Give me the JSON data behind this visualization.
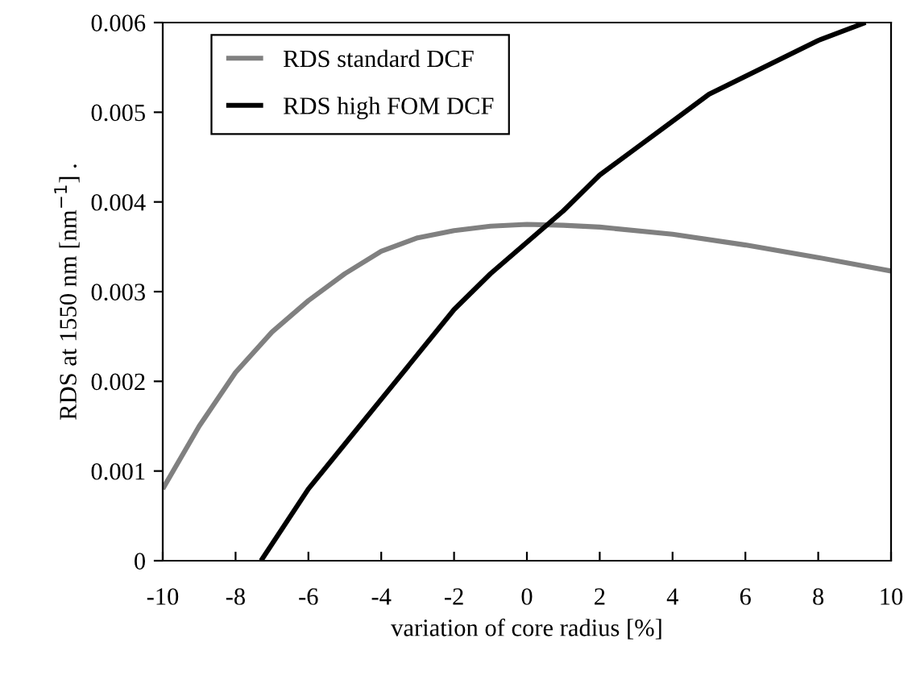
{
  "chart_data": {
    "type": "line",
    "xlabel": "variation of core radius [%]",
    "ylabel": "RDS at 1550 nm [nm$^{−1}$] .",
    "xlim": [
      -10,
      10
    ],
    "xticks": [
      -10,
      -8,
      -6,
      -4,
      -2,
      0,
      2,
      4,
      6,
      8,
      10
    ],
    "ylim": [
      0,
      0.006
    ],
    "yticks": [
      0,
      0.001,
      0.002,
      0.003,
      0.004,
      0.005,
      0.006
    ],
    "grid": false,
    "legend": "top left",
    "marker": "none",
    "line_style": "solid",
    "series": [
      {
        "name": "RDS standard DCF",
        "color": "#808080",
        "x": [
          -10,
          -9,
          -8,
          -7,
          -6,
          -5,
          -4,
          -3,
          -2,
          -1,
          0,
          1,
          2,
          4,
          6,
          8,
          10
        ],
        "values": [
          0.0008,
          0.0015,
          0.0021,
          0.00255,
          0.0029,
          0.0032,
          0.00345,
          0.0036,
          0.00368,
          0.00373,
          0.00375,
          0.00374,
          0.00372,
          0.00364,
          0.00352,
          0.00338,
          0.00323
        ]
      },
      {
        "name": "RDS high FOM DCF",
        "color": "#000000",
        "x": [
          -7.3,
          -6,
          -5,
          -4,
          -3,
          -2,
          -1,
          0,
          1,
          2,
          3,
          4,
          5,
          6,
          7,
          8,
          9.3
        ],
        "values": [
          0,
          0.0008,
          0.0013,
          0.0018,
          0.0023,
          0.0028,
          0.0032,
          0.00355,
          0.0039,
          0.0043,
          0.0046,
          0.0049,
          0.0052,
          0.0054,
          0.0056,
          0.0058,
          0.006
        ]
      }
    ]
  }
}
